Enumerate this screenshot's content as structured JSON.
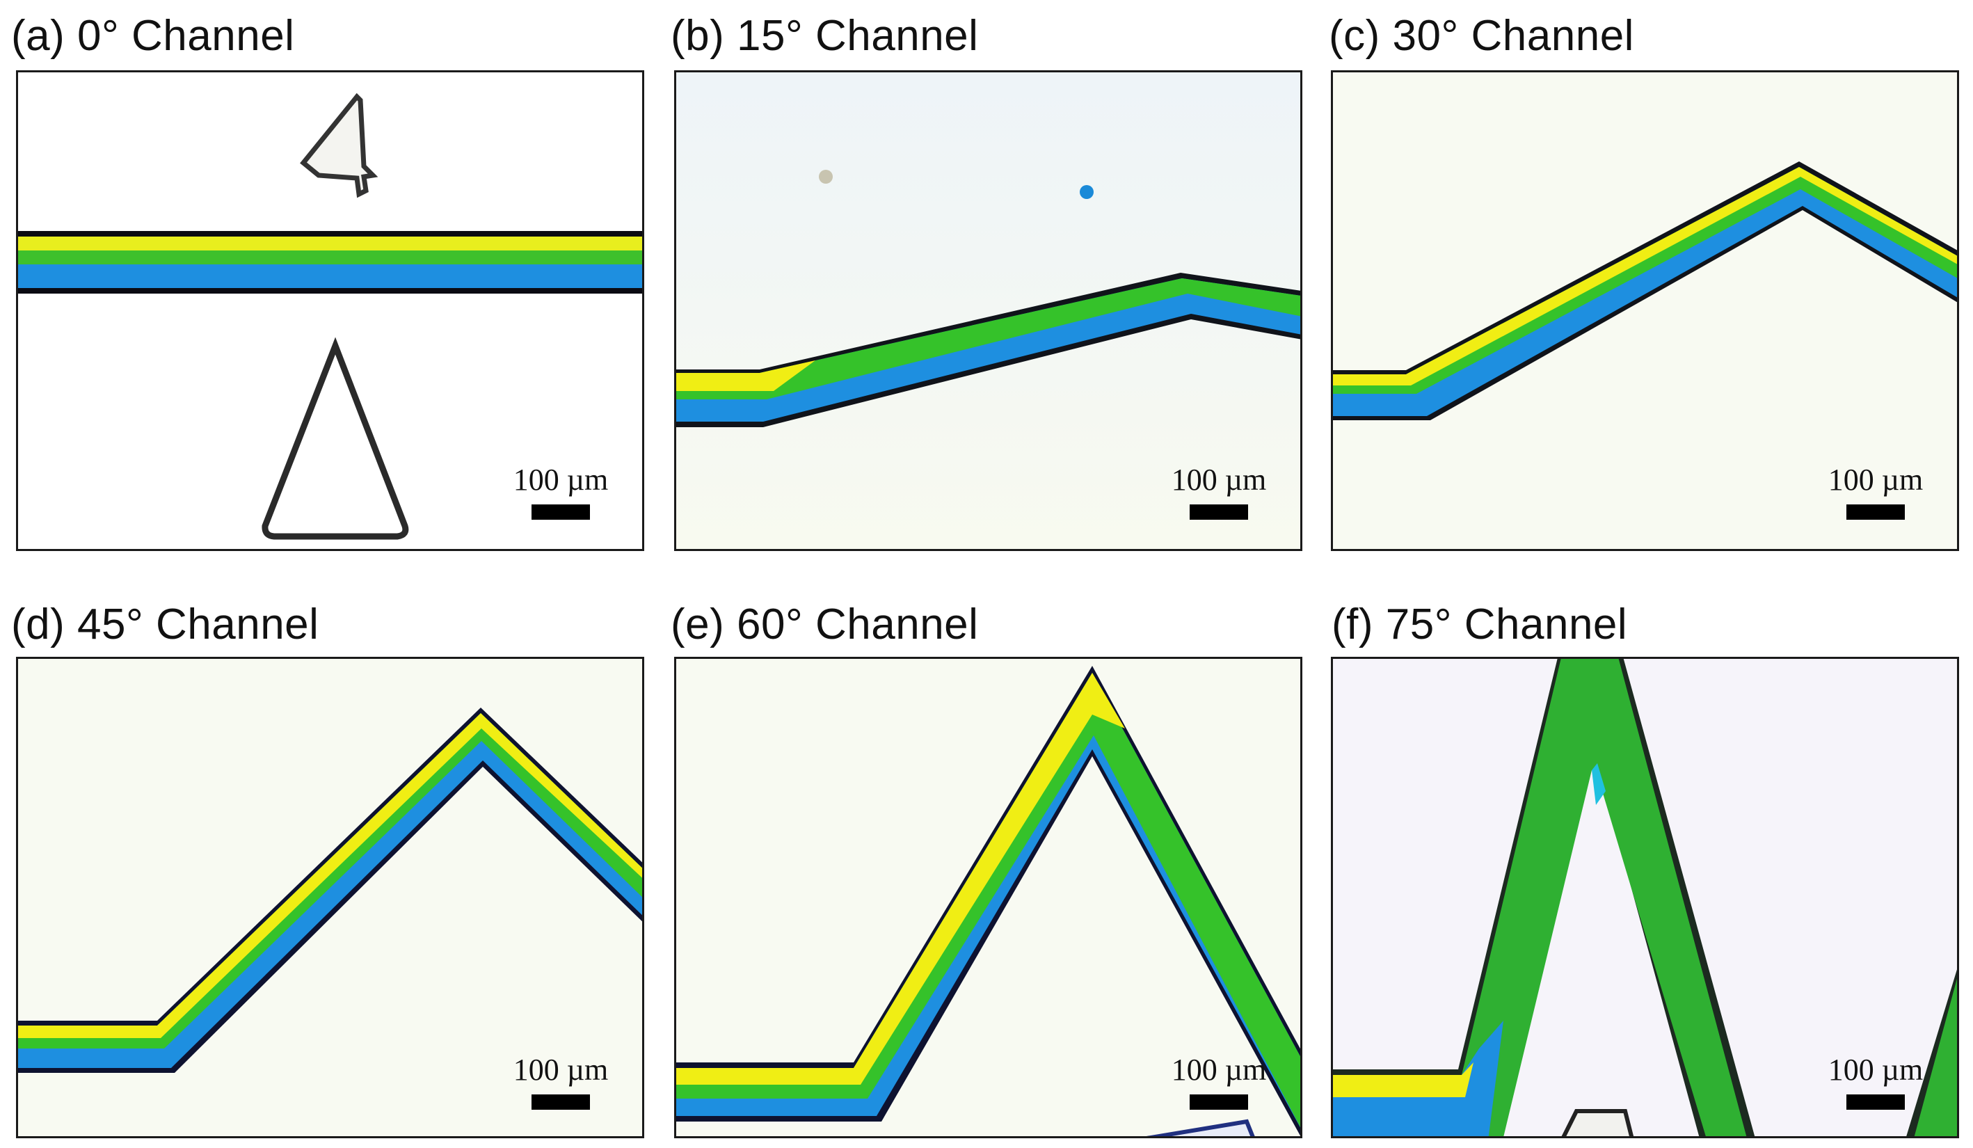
{
  "panels": [
    {
      "label": "(a) 0°  Channel",
      "scale": "100 µm"
    },
    {
      "label": "(b) 15°  Channel",
      "scale": "100 µm"
    },
    {
      "label": "(c) 30°  Channel",
      "scale": "100 µm"
    },
    {
      "label": "(d) 45°  Channel",
      "scale": "100 µm"
    },
    {
      "label": "(e) 60°  Channel",
      "scale": "100 µm"
    },
    {
      "label": "(f) 75°  Channel",
      "scale": "100 µm"
    }
  ],
  "colors": {
    "yellow": "#f2ee12",
    "green": "#2ec32a",
    "blue": "#1e8fe0",
    "wall": "#1a1a4a",
    "background": "#f9fbf5"
  }
}
